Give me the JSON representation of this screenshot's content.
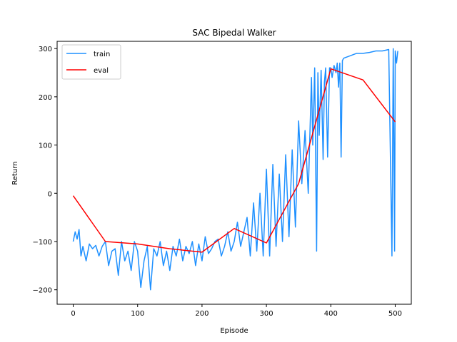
{
  "chart_data": {
    "type": "line",
    "title": "SAC Bipedal Walker",
    "xlabel": "Episode",
    "ylabel": "Return",
    "xlim": [
      -25,
      525
    ],
    "ylim": [
      -230,
      315
    ],
    "xticks": [
      0,
      100,
      200,
      300,
      400,
      500
    ],
    "yticks": [
      -200,
      -100,
      0,
      100,
      200,
      300
    ],
    "legend_position": "top-left",
    "series": [
      {
        "name": "train",
        "color": "#1e90ff",
        "x": [
          0,
          3,
          6,
          9,
          12,
          15,
          20,
          25,
          30,
          35,
          40,
          45,
          50,
          55,
          60,
          65,
          70,
          75,
          80,
          85,
          90,
          95,
          100,
          105,
          110,
          115,
          120,
          125,
          130,
          135,
          140,
          145,
          150,
          155,
          160,
          165,
          170,
          175,
          180,
          185,
          190,
          195,
          200,
          205,
          210,
          215,
          220,
          225,
          230,
          235,
          240,
          245,
          250,
          255,
          260,
          265,
          270,
          275,
          280,
          285,
          290,
          295,
          300,
          305,
          310,
          315,
          320,
          325,
          330,
          335,
          340,
          345,
          350,
          355,
          360,
          365,
          370,
          372,
          375,
          378,
          380,
          382,
          385,
          388,
          390,
          392,
          395,
          398,
          400,
          402,
          405,
          408,
          410,
          412,
          414,
          416,
          418,
          420,
          430,
          440,
          450,
          460,
          470,
          480,
          490,
          495,
          497,
          499,
          500,
          502,
          504
        ],
        "y": [
          -100,
          -80,
          -95,
          -75,
          -130,
          -110,
          -140,
          -105,
          -115,
          -108,
          -130,
          -110,
          -100,
          -150,
          -120,
          -115,
          -170,
          -100,
          -140,
          -120,
          -160,
          -100,
          -120,
          -195,
          -140,
          -110,
          -200,
          -115,
          -130,
          -100,
          -150,
          -120,
          -160,
          -110,
          -130,
          -95,
          -140,
          -110,
          -125,
          -100,
          -150,
          -105,
          -140,
          -90,
          -125,
          -115,
          -100,
          -95,
          -130,
          -110,
          -80,
          -120,
          -100,
          -60,
          -110,
          -80,
          -50,
          -130,
          -20,
          -120,
          0,
          -130,
          50,
          -130,
          60,
          -110,
          40,
          -100,
          80,
          -90,
          90,
          -70,
          150,
          20,
          130,
          0,
          240,
          100,
          260,
          -120,
          250,
          120,
          255,
          70,
          230,
          260,
          75,
          260,
          260,
          240,
          265,
          250,
          270,
          220,
          270,
          75,
          275,
          280,
          285,
          290,
          290,
          292,
          295,
          295,
          298,
          -130,
          300,
          -120,
          295,
          270,
          295
        ]
      },
      {
        "name": "eval",
        "color": "#ff0000",
        "x": [
          0,
          50,
          100,
          150,
          200,
          250,
          300,
          350,
          400,
          450,
          500
        ],
        "y": [
          -5,
          -100,
          -105,
          -115,
          -122,
          -73,
          -103,
          20,
          258,
          235,
          148
        ]
      }
    ]
  }
}
